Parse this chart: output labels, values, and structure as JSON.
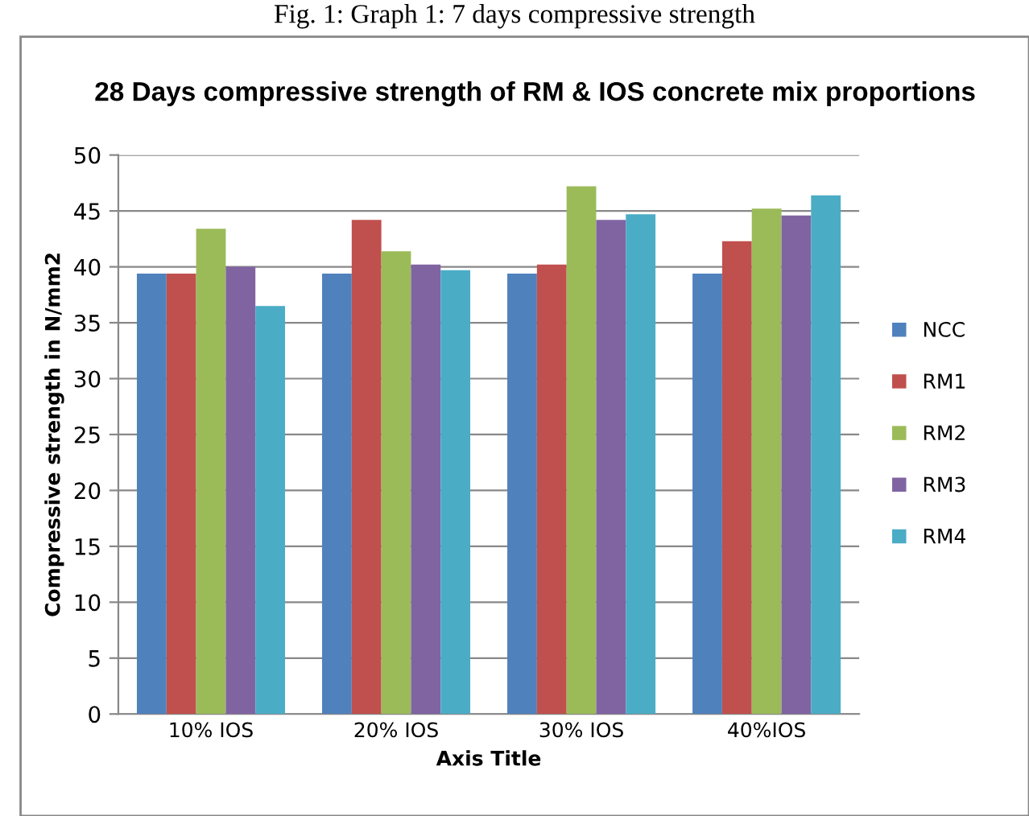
{
  "chart_data": {
    "type": "bar",
    "title": "28 Days compressive strength of RM & IOS concrete mix proportions",
    "xlabel": "Axis Title",
    "ylabel": "Compressive strength in N/mm2",
    "annotations": [
      "Fig. 1: Graph 1: 7 days compressive strength"
    ],
    "categories": [
      "10% IOS",
      "20% IOS",
      "30% IOS",
      "40%IOS"
    ],
    "series": [
      {
        "name": "NCC",
        "color": "#4f81bd",
        "values": [
          39.4,
          39.4,
          39.4,
          39.4
        ]
      },
      {
        "name": "RM1",
        "color": "#c0504d",
        "values": [
          39.4,
          44.2,
          40.2,
          42.3
        ]
      },
      {
        "name": "RM2",
        "color": "#9bbb59",
        "values": [
          43.4,
          41.4,
          47.2,
          45.2
        ]
      },
      {
        "name": "RM3",
        "color": "#8064a2",
        "values": [
          40.0,
          40.2,
          44.2,
          44.6
        ]
      },
      {
        "name": "RM4",
        "color": "#4bacc6",
        "values": [
          36.5,
          39.7,
          44.7,
          46.4
        ]
      }
    ],
    "ylim": [
      0,
      50
    ],
    "yticks": [
      0,
      5,
      10,
      15,
      20,
      25,
      30,
      35,
      40,
      45,
      50
    ],
    "grid": "y",
    "legend": "right"
  }
}
